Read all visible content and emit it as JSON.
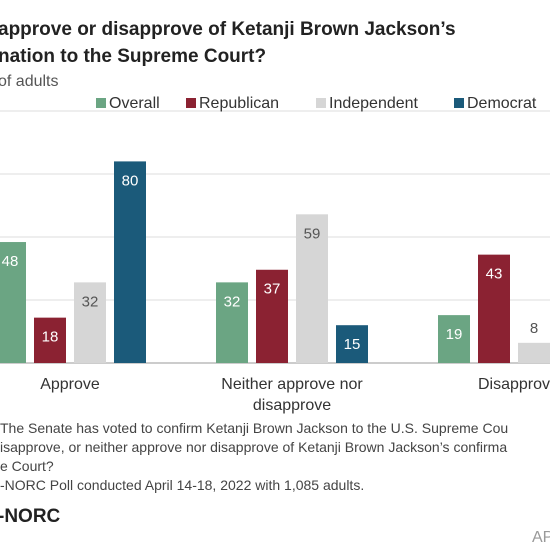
{
  "chart_data": {
    "type": "bar",
    "title": [
      "approve or disapprove of Ketanji Brown Jackson’s",
      "nation to the Supreme Court?"
    ],
    "subtitle": "of adults",
    "categories": [
      "Approve",
      "Neither approve nor disapprove",
      "Disapprov"
    ],
    "series": [
      {
        "name": "Overall",
        "color": "#6ba583",
        "values": [
          48,
          32,
          19
        ]
      },
      {
        "name": "Republican",
        "color": "#8b2232",
        "values": [
          18,
          37,
          43
        ]
      },
      {
        "name": "Independent",
        "color": "#d6d6d6",
        "values": [
          32,
          59,
          8
        ]
      },
      {
        "name": "Democrat",
        "color": "#1b5a7a",
        "values": [
          80,
          15,
          null
        ]
      }
    ],
    "ylim": [
      0,
      100
    ],
    "yticks": [
      0,
      25,
      50,
      75,
      100
    ],
    "grid": true,
    "notes": [
      "The Senate has voted to confirm Ketanji Brown Jackson to the U.S. Supreme Cou",
      "isapprove, or neither approve nor disapprove of Ketanji Brown Jackson’s confirma",
      "e Court?",
      "-NORC Poll conducted April 14-18, 2022 with 1,085 adults."
    ],
    "logo": "-NORC",
    "credit": "AP"
  }
}
